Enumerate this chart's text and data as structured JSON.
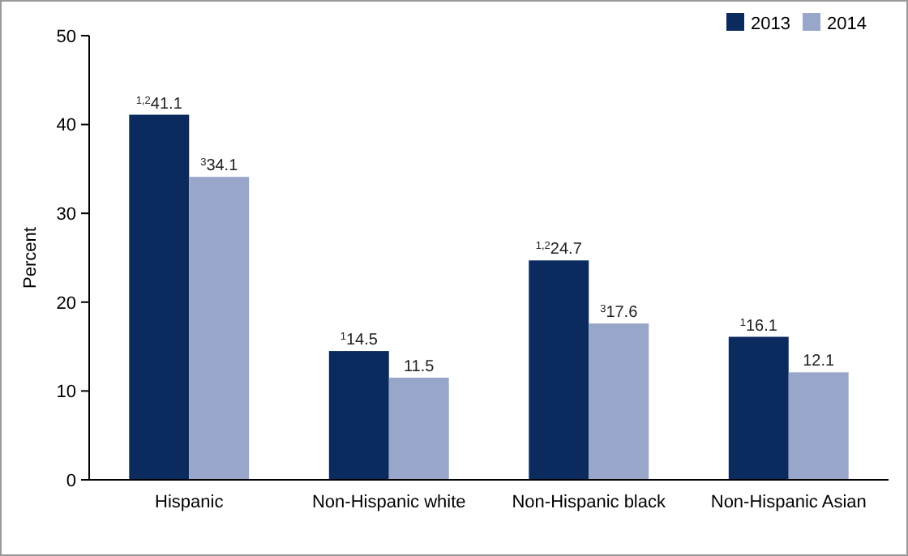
{
  "chart_data": {
    "type": "bar",
    "ylabel": "Percent",
    "categories": [
      "Hispanic",
      "Non-Hispanic white",
      "Non-Hispanic black",
      "Non-Hispanic Asian"
    ],
    "series": [
      {
        "name": "2013",
        "color": "#0b2b5f",
        "values": [
          41.1,
          14.5,
          24.7,
          16.1
        ],
        "value_labels": [
          "$^{1,2}$41.1",
          "$^{1}$14.5",
          "$^{1,2}$24.7",
          "$^{1}$16.1"
        ]
      },
      {
        "name": "2014",
        "color": "#97a6c9",
        "values": [
          34.1,
          11.5,
          17.6,
          12.1
        ],
        "value_labels": [
          "$^{3}$34.1",
          "11.5",
          "$^{3}$17.6",
          "12.1"
        ]
      }
    ],
    "ylim": [
      0,
      50
    ],
    "yticks": [
      0,
      10,
      20,
      30,
      40,
      50
    ],
    "legend": "top right",
    "grid": false
  }
}
